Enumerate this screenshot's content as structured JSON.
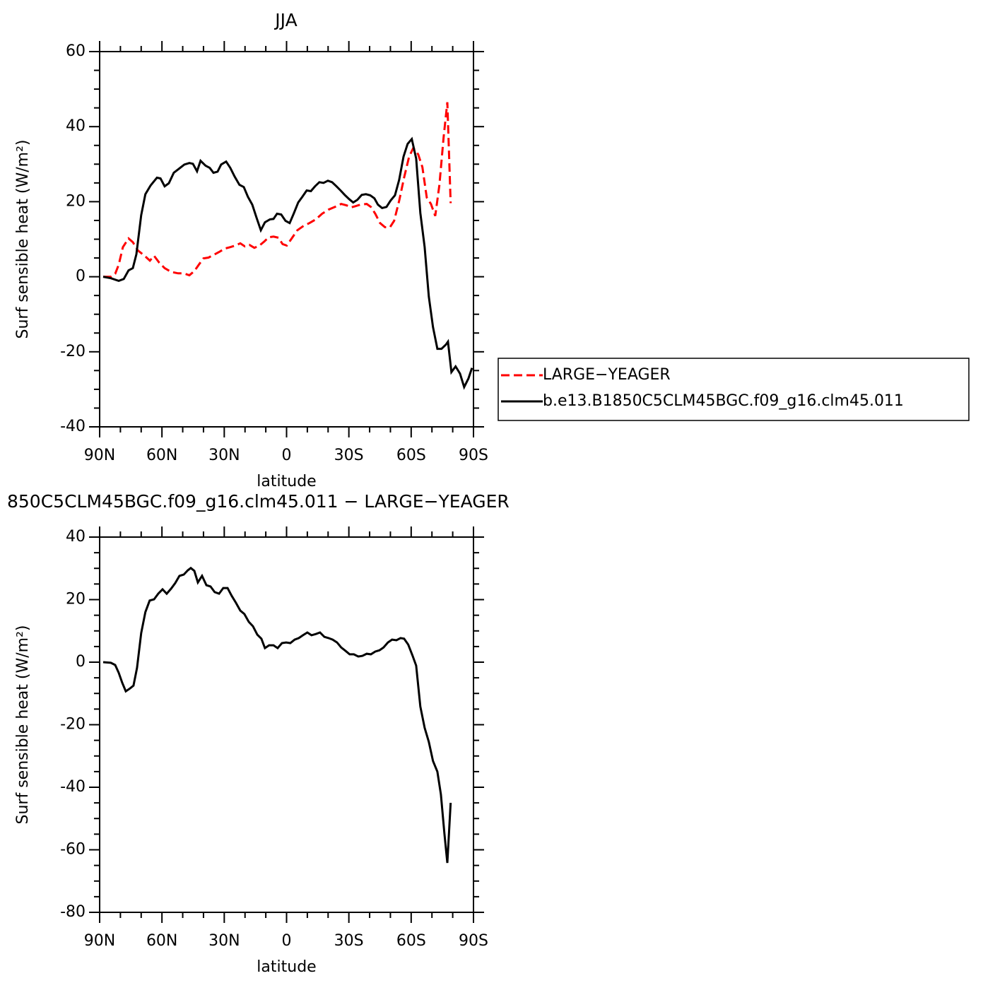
{
  "chart_data": [
    {
      "type": "line",
      "title": "JJA",
      "xlabel": "latitude",
      "ylabel": "Surf sensible heat (W/m²)",
      "xlim": [
        90,
        -90
      ],
      "xticks": [
        {
          "value": 90,
          "label": "90N"
        },
        {
          "value": 60,
          "label": "60N"
        },
        {
          "value": 30,
          "label": "30N"
        },
        0,
        {
          "value": -30,
          "label": "30S"
        },
        {
          "value": -60,
          "label": "60S"
        },
        {
          "value": -90,
          "label": "90S"
        }
      ],
      "ylim": [
        -40,
        60
      ],
      "yticks": [
        -40,
        -20,
        0,
        20,
        40,
        60
      ],
      "legend": "right",
      "series": [
        {
          "name": "LARGE−YEAGER",
          "color": "#ff0000",
          "dash": true,
          "x": [
            88.3,
            84.6,
            82.5,
            80.8,
            78.8,
            76.1,
            74,
            71.6,
            68.2,
            65.8,
            63.8,
            61.4,
            58.7,
            55.6,
            52.2,
            49.5,
            46.8,
            44.4,
            42,
            40,
            37.6,
            35.2,
            32.5,
            29.8,
            27.1,
            24.7,
            22.3,
            20.1,
            17.9,
            15.5,
            13.1,
            10.7,
            8.7,
            6.3,
            3.9,
            1.9,
            -0.1,
            -2.5,
            -5.2,
            -8.3,
            -11,
            -14.1,
            -17.1,
            -20.2,
            -23.3,
            -26.3,
            -29,
            -31.1,
            -33.1,
            -35.5,
            -38.6,
            -40.6,
            -42.7,
            -45,
            -47.4,
            -49.8,
            -51.8,
            -54.2,
            -56.6,
            -59,
            -61,
            -63.4,
            -65.4,
            -67.5,
            -69.5,
            -71.6,
            -73.6,
            -75.6,
            -77.4,
            -79
          ],
          "values": [
            0,
            0,
            0.8,
            3.2,
            7.9,
            10.2,
            9.2,
            7,
            5.5,
            4.3,
            5.6,
            3.8,
            2.3,
            1.3,
            0.9,
            0.9,
            0.4,
            1.5,
            3.4,
            4.9,
            5.1,
            5.8,
            6.6,
            7.5,
            7.9,
            8.3,
            8.9,
            8.1,
            8.5,
            7.7,
            8.3,
            9.4,
            10.5,
            10.7,
            10.4,
            8.7,
            8.3,
            10.2,
            12.4,
            13.6,
            14.3,
            15.3,
            16.8,
            17.9,
            18.6,
            19.4,
            19,
            18.5,
            18.8,
            19.2,
            19.4,
            18.6,
            16.8,
            14.3,
            13.2,
            13.2,
            14.9,
            20.2,
            26.4,
            32,
            34.3,
            32.6,
            29.2,
            21.1,
            19.4,
            16.2,
            24.5,
            37.1,
            46.5,
            19.6
          ]
        },
        {
          "name": "b.e13.B1850C5CLM45BGC.f09_g16.clm45.011",
          "color": "#000000",
          "dash": false,
          "x": [
            88.3,
            84.6,
            80.8,
            78.4,
            76.1,
            74,
            72.3,
            70,
            68,
            65.5,
            62.4,
            60.7,
            58.7,
            56.7,
            54.3,
            52.2,
            49.2,
            46.8,
            45.1,
            43.1,
            41.4,
            39,
            37,
            35.2,
            33.2,
            31.5,
            29.1,
            27.1,
            25,
            22.7,
            20.6,
            18.6,
            16.5,
            14.5,
            12.4,
            10.4,
            8,
            6.3,
            4.6,
            2.6,
            0.5,
            -1.5,
            -3.5,
            -5.6,
            -7.6,
            -9.7,
            -11.7,
            -13.7,
            -15.8,
            -17.8,
            -19.9,
            -21.9,
            -24,
            -26,
            -28,
            -30.1,
            -32.1,
            -34.1,
            -36.2,
            -38.2,
            -40.3,
            -42.3,
            -44,
            -46,
            -48.1,
            -50.1,
            -52.2,
            -54.2,
            -56.3,
            -58.3,
            -60.3,
            -62.4,
            -64.4,
            -66.5,
            -68.5,
            -70.5,
            -72.6,
            -74.6,
            -76.7,
            -77.7,
            -79.4,
            -81.4,
            -83.5,
            -85.5,
            -87.6,
            -89.3
          ],
          "values": [
            0,
            -0.4,
            -1.1,
            -0.6,
            1.7,
            2.3,
            6,
            16.4,
            22,
            24.3,
            26.4,
            26.2,
            24.1,
            24.9,
            27.7,
            28.6,
            29.9,
            30.3,
            30.1,
            28.1,
            30.9,
            29.6,
            29,
            27.7,
            28,
            29.9,
            30.7,
            29,
            26.7,
            24.5,
            23.9,
            21.3,
            19.2,
            15.8,
            12.4,
            14.5,
            15.3,
            15.4,
            16.8,
            16.6,
            14.9,
            14.3,
            16.9,
            19.8,
            21.3,
            23,
            22.8,
            24.1,
            25.2,
            25,
            25.6,
            25.2,
            24.1,
            23,
            21.8,
            20.7,
            19.8,
            20.5,
            21.8,
            22,
            21.7,
            20.9,
            19.2,
            18.3,
            18.6,
            20.3,
            21.7,
            25.8,
            32,
            35.4,
            36.7,
            31.5,
            17,
            7.9,
            -5.3,
            -13.4,
            -19.2,
            -19.2,
            -18.1,
            -17.3,
            -25.4,
            -23.9,
            -25.8,
            -29.4,
            -27.1,
            -24.3
          ]
        }
      ]
    },
    {
      "type": "line",
      "title": "850C5CLM45BGC.f09_g16.clm45.011 − LARGE−YEAGER",
      "xlabel": "latitude",
      "ylabel": "Surf sensible heat (W/m²)",
      "xlim": [
        90,
        -90
      ],
      "xticks": [
        {
          "value": 90,
          "label": "90N"
        },
        {
          "value": 60,
          "label": "60N"
        },
        {
          "value": 30,
          "label": "30N"
        },
        0,
        {
          "value": -30,
          "label": "30S"
        },
        {
          "value": -60,
          "label": "60S"
        },
        {
          "value": -90,
          "label": "90S"
        }
      ],
      "ylim": [
        -80,
        40
      ],
      "yticks": [
        -80,
        -60,
        -40,
        -20,
        0,
        20,
        40
      ],
      "series": [
        {
          "color": "#000000",
          "dash": false,
          "x": [
            88.3,
            84.6,
            82.5,
            80.8,
            79.1,
            77.4,
            75.4,
            73.7,
            72,
            70,
            68,
            65.9,
            63.8,
            61.8,
            59.7,
            57.7,
            55.6,
            53.6,
            51.6,
            49.5,
            47.5,
            46.1,
            44.4,
            42.7,
            40.7,
            38.6,
            36.6,
            34.6,
            32.5,
            30.5,
            28.4,
            26.4,
            24.4,
            22.3,
            20.3,
            18.2,
            16.2,
            14.1,
            12.1,
            10.4,
            8.4,
            6.3,
            4.3,
            2.2,
            0.2,
            -1.8,
            -3.9,
            -5.9,
            -7.9,
            -10,
            -12,
            -14.1,
            -16.1,
            -18.2,
            -20.2,
            -22.2,
            -24.3,
            -26.3,
            -28.4,
            -30.4,
            -32.4,
            -34.5,
            -36.5,
            -38.6,
            -40.6,
            -42.7,
            -44.7,
            -46.7,
            -48.8,
            -50.8,
            -52.9,
            -54.9,
            -56.6,
            -58.6,
            -60.7,
            -62.4,
            -64.4,
            -66.5,
            -68.5,
            -70.5,
            -72.6,
            -74.3,
            -76,
            -77.4,
            -79
          ],
          "values": [
            0,
            -0.2,
            -0.9,
            -3.4,
            -6.6,
            -9.3,
            -8.4,
            -7.5,
            -1.8,
            9.3,
            16,
            19.7,
            20.1,
            21.9,
            23.3,
            21.9,
            23.5,
            25.3,
            27.6,
            28,
            29.4,
            30.1,
            29.2,
            25.5,
            27.6,
            24.6,
            24.2,
            22.4,
            21.9,
            23.7,
            23.7,
            21.2,
            19,
            16.5,
            15.4,
            12.9,
            11.5,
            8.8,
            7.5,
            4.5,
            5.4,
            5.4,
            4.5,
            6.1,
            6.3,
            6.1,
            7.2,
            7.7,
            8.6,
            9.5,
            8.6,
            9,
            9.5,
            8.1,
            7.7,
            7.2,
            6.3,
            4.7,
            3.6,
            2.5,
            2.5,
            1.8,
            2,
            2.7,
            2.5,
            3.4,
            3.8,
            4.7,
            6.3,
            7.2,
            7,
            7.7,
            7.5,
            5.6,
            2,
            -1.1,
            -14.2,
            -21,
            -25.5,
            -31.6,
            -35,
            -42.3,
            -54.9,
            -64.2,
            -45
          ]
        }
      ]
    }
  ]
}
